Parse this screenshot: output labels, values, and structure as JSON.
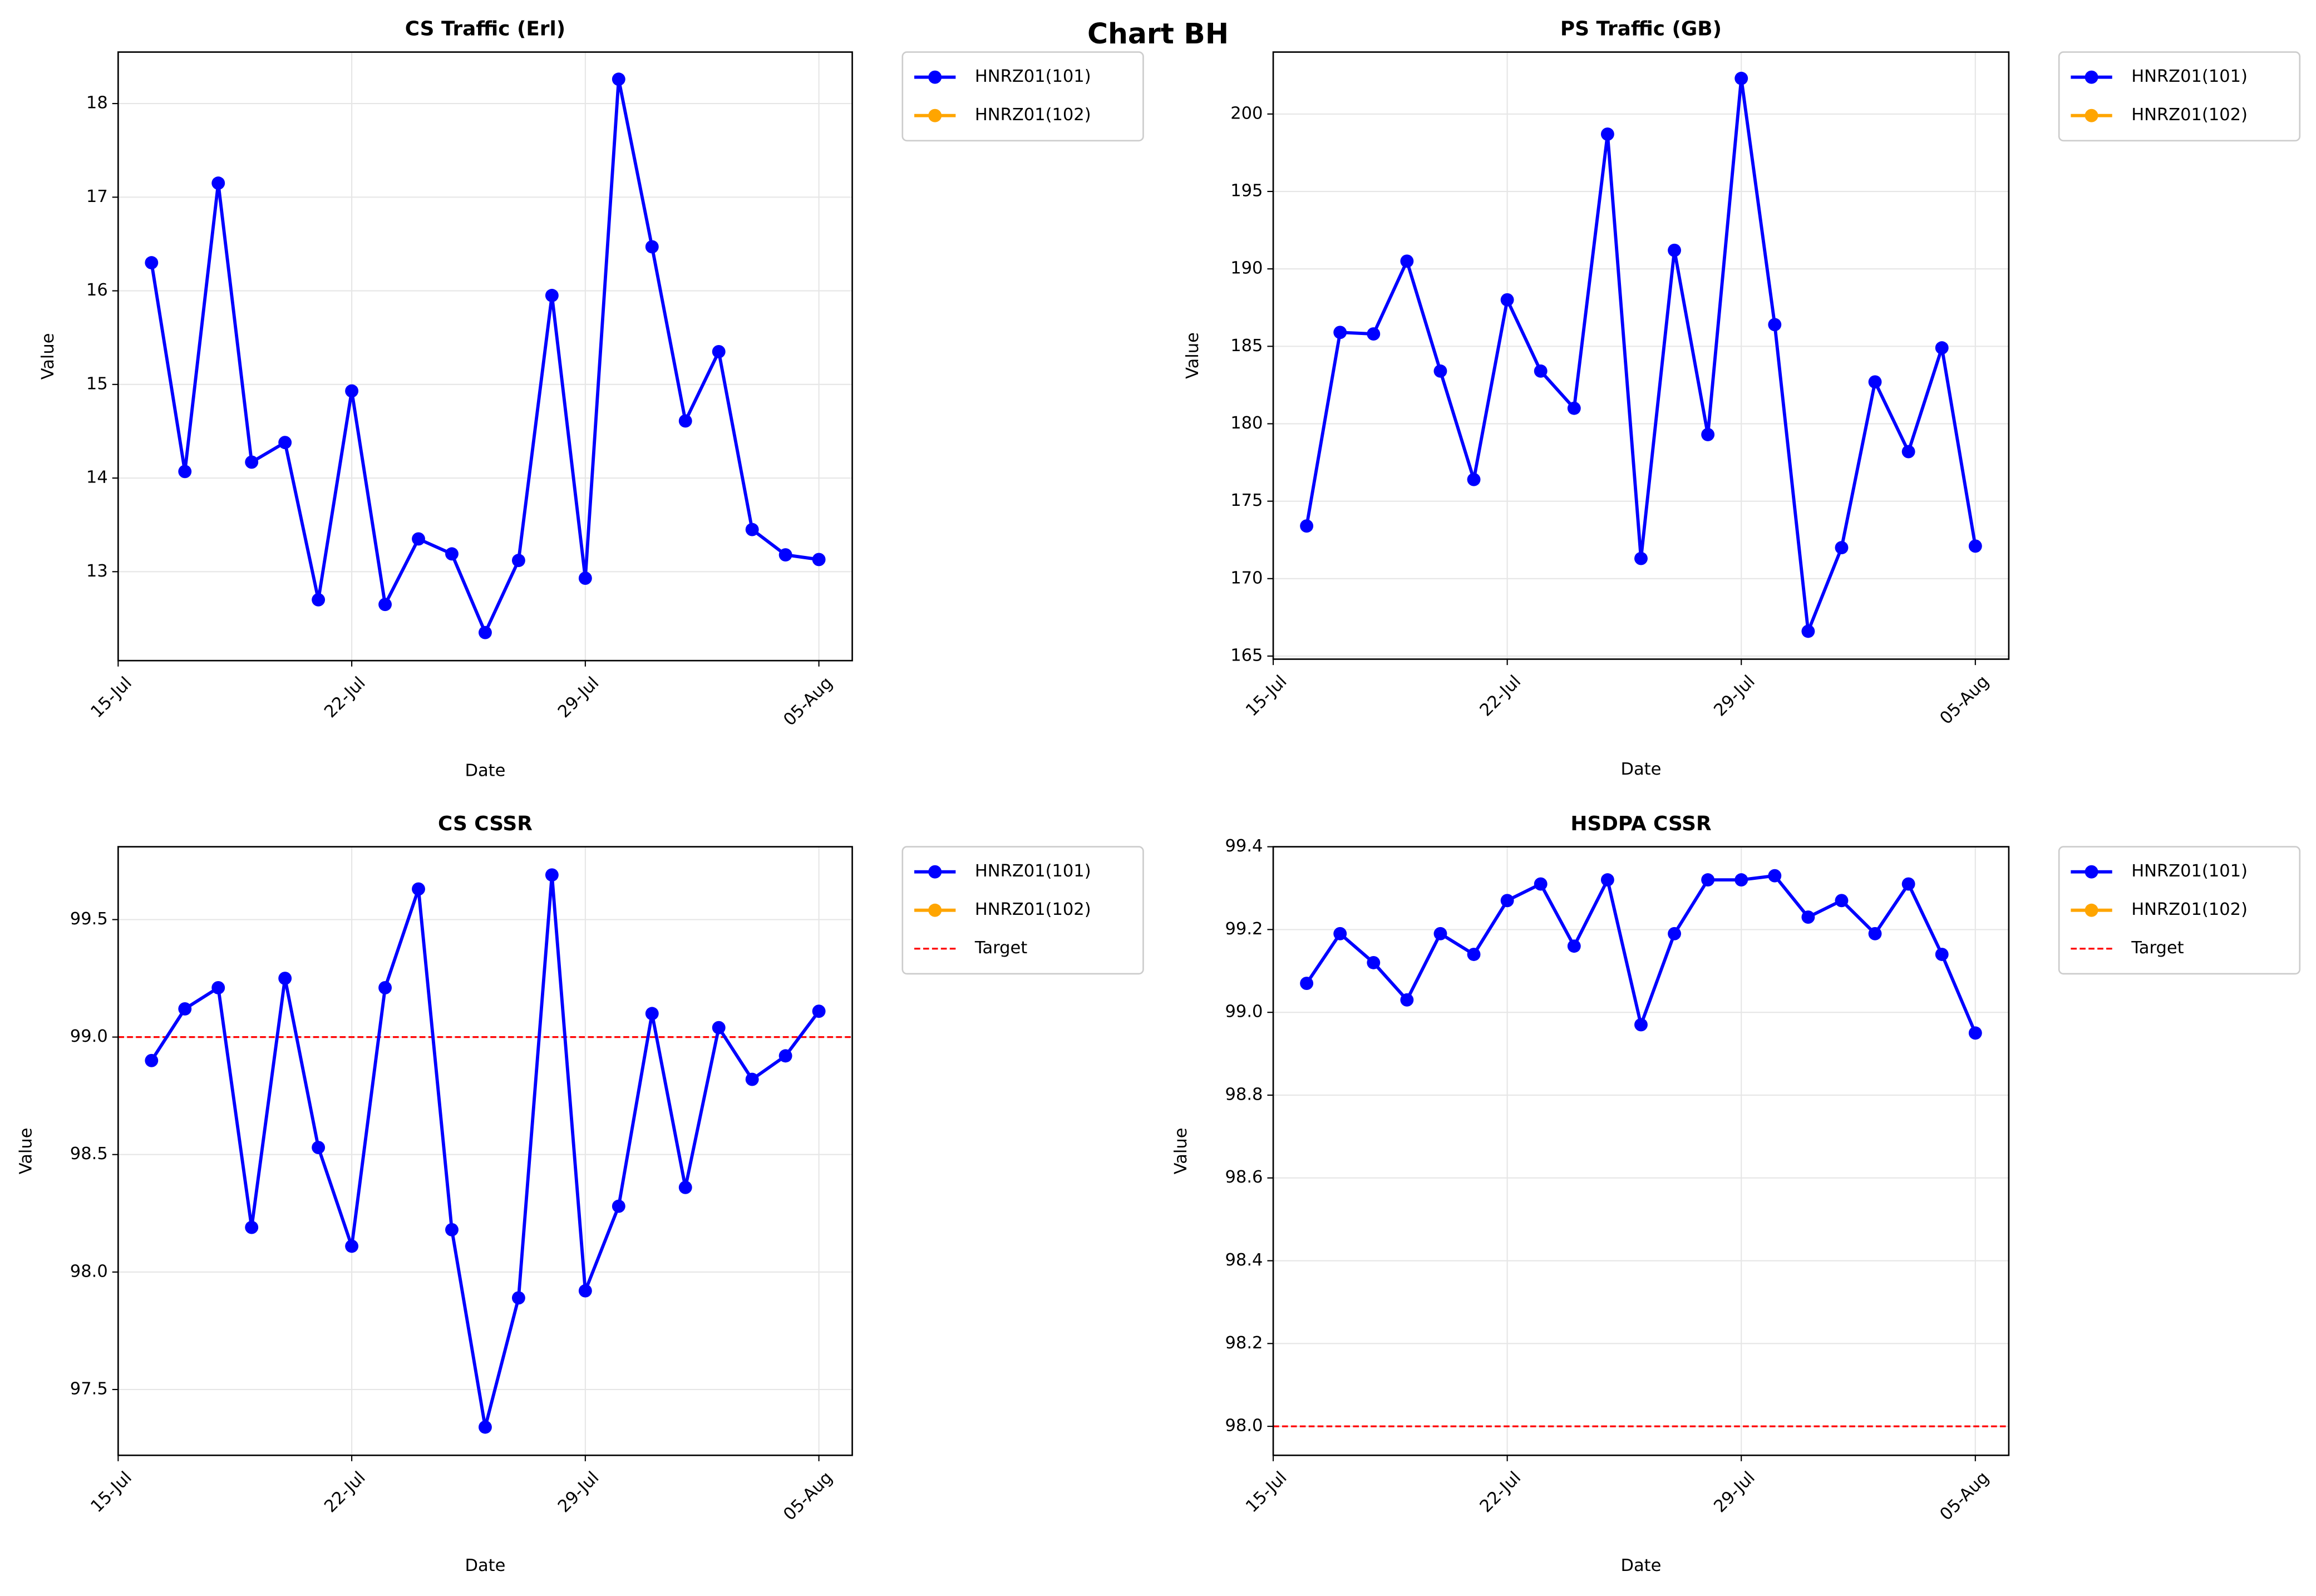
{
  "title": "Chart BH",
  "chart_data": [
    {
      "type": "line",
      "title": "CS Traffic (Erl)",
      "xlabel": "Date",
      "ylabel": "Value",
      "x": [
        "16-Jul",
        "17-Jul",
        "18-Jul",
        "19-Jul",
        "20-Jul",
        "21-Jul",
        "22-Jul",
        "23-Jul",
        "24-Jul",
        "25-Jul",
        "26-Jul",
        "27-Jul",
        "28-Jul",
        "29-Jul",
        "30-Jul",
        "31-Jul",
        "01-Aug",
        "02-Aug",
        "03-Aug",
        "04-Aug",
        "05-Aug"
      ],
      "series": [
        {
          "name": "HNRZ01(101)",
          "color": "#0000ff",
          "values": [
            16.3,
            14.07,
            17.15,
            14.17,
            14.38,
            12.7,
            14.93,
            12.65,
            13.35,
            13.19,
            12.35,
            13.12,
            15.95,
            12.93,
            18.26,
            16.47,
            14.61,
            15.35,
            13.45,
            13.18,
            13.13
          ]
        },
        {
          "name": "HNRZ01(102)",
          "color": "#ffa500",
          "values": [
            null,
            null,
            null,
            null,
            null,
            null,
            null,
            null,
            null,
            null,
            null,
            null,
            null,
            null,
            null,
            null,
            null,
            null,
            null,
            null,
            null
          ]
        }
      ],
      "xlim": [
        "15-Jul",
        "06-Aug"
      ],
      "xticks": [
        "15-Jul",
        "22-Jul",
        "29-Jul",
        "05-Aug"
      ],
      "ylim": [
        12.05,
        18.55
      ],
      "yticks": [
        13,
        14,
        15,
        16,
        17,
        18
      ],
      "grid": true,
      "legend": "outside upper right"
    },
    {
      "type": "line",
      "title": "PS Traffic (GB)",
      "xlabel": "Date",
      "ylabel": "Value",
      "x": [
        "16-Jul",
        "17-Jul",
        "18-Jul",
        "19-Jul",
        "20-Jul",
        "21-Jul",
        "22-Jul",
        "23-Jul",
        "24-Jul",
        "25-Jul",
        "26-Jul",
        "27-Jul",
        "28-Jul",
        "29-Jul",
        "30-Jul",
        "31-Jul",
        "01-Aug",
        "02-Aug",
        "03-Aug",
        "04-Aug",
        "05-Aug"
      ],
      "series": [
        {
          "name": "HNRZ01(101)",
          "color": "#0000ff",
          "values": [
            173.4,
            185.9,
            185.8,
            190.5,
            183.4,
            176.4,
            188.0,
            183.4,
            181.0,
            198.7,
            171.3,
            191.2,
            179.3,
            202.3,
            186.4,
            166.6,
            172.0,
            182.7,
            178.2,
            184.9,
            172.1
          ]
        },
        {
          "name": "HNRZ01(102)",
          "color": "#ffa500",
          "values": [
            null,
            null,
            null,
            null,
            null,
            null,
            null,
            null,
            null,
            null,
            null,
            null,
            null,
            null,
            null,
            null,
            null,
            null,
            null,
            null,
            null
          ]
        }
      ],
      "xlim": [
        "15-Jul",
        "06-Aug"
      ],
      "xticks": [
        "15-Jul",
        "22-Jul",
        "29-Jul",
        "05-Aug"
      ],
      "ylim": [
        164.8,
        204.0
      ],
      "yticks": [
        165,
        170,
        175,
        180,
        185,
        190,
        195,
        200
      ],
      "grid": true,
      "legend": "outside upper right"
    },
    {
      "type": "line",
      "title": "CS CSSR",
      "xlabel": "Date",
      "ylabel": "Value",
      "x": [
        "16-Jul",
        "17-Jul",
        "18-Jul",
        "19-Jul",
        "20-Jul",
        "21-Jul",
        "22-Jul",
        "23-Jul",
        "24-Jul",
        "25-Jul",
        "26-Jul",
        "27-Jul",
        "28-Jul",
        "29-Jul",
        "30-Jul",
        "31-Jul",
        "01-Aug",
        "02-Aug",
        "03-Aug",
        "04-Aug",
        "05-Aug"
      ],
      "series": [
        {
          "name": "HNRZ01(101)",
          "color": "#0000ff",
          "values": [
            98.9,
            99.12,
            99.21,
            98.19,
            99.25,
            98.53,
            98.11,
            99.21,
            99.63,
            98.18,
            97.34,
            97.89,
            99.69,
            97.92,
            98.28,
            99.1,
            98.36,
            99.04,
            98.82,
            98.92,
            99.11
          ]
        },
        {
          "name": "HNRZ01(102)",
          "color": "#ffa500",
          "values": [
            null,
            null,
            null,
            null,
            null,
            null,
            null,
            null,
            null,
            null,
            null,
            null,
            null,
            null,
            null,
            null,
            null,
            null,
            null,
            null,
            null
          ]
        }
      ],
      "target": {
        "name": "Target",
        "color": "#ff0000",
        "value": 99
      },
      "xlim": [
        "15-Jul",
        "06-Aug"
      ],
      "xticks": [
        "15-Jul",
        "22-Jul",
        "29-Jul",
        "05-Aug"
      ],
      "ylim": [
        97.22,
        99.81
      ],
      "yticks": [
        97.5,
        {
          "value": 98,
          "label": "98.0"
        },
        98.5,
        {
          "value": 99,
          "label": "99.0"
        },
        99.5
      ],
      "grid": true,
      "legend": "outside upper right"
    },
    {
      "type": "line",
      "title": "HSDPA CSSR",
      "xlabel": "Date",
      "ylabel": "Value",
      "x": [
        "16-Jul",
        "17-Jul",
        "18-Jul",
        "19-Jul",
        "20-Jul",
        "21-Jul",
        "22-Jul",
        "23-Jul",
        "24-Jul",
        "25-Jul",
        "26-Jul",
        "27-Jul",
        "28-Jul",
        "29-Jul",
        "30-Jul",
        "31-Jul",
        "01-Aug",
        "02-Aug",
        "03-Aug",
        "04-Aug",
        "05-Aug"
      ],
      "series": [
        {
          "name": "HNRZ01(101)",
          "color": "#0000ff",
          "values": [
            99.07,
            99.19,
            99.12,
            99.03,
            99.19,
            99.14,
            99.27,
            99.31,
            99.16,
            99.32,
            98.97,
            99.19,
            99.32,
            99.32,
            99.33,
            99.23,
            99.27,
            99.19,
            99.31,
            99.14,
            98.95
          ]
        },
        {
          "name": "HNRZ01(102)",
          "color": "#ffa500",
          "values": [
            null,
            null,
            null,
            null,
            null,
            null,
            null,
            null,
            null,
            null,
            null,
            null,
            null,
            null,
            null,
            null,
            null,
            null,
            null,
            null,
            null
          ]
        }
      ],
      "target": {
        "name": "Target",
        "color": "#ff0000",
        "value": 98
      },
      "xlim": [
        "15-Jul",
        "06-Aug"
      ],
      "xticks": [
        "15-Jul",
        "22-Jul",
        "29-Jul",
        "05-Aug"
      ],
      "ylim": [
        97.93,
        99.4
      ],
      "yticks": [
        {
          "value": 98,
          "label": "98.0"
        },
        98.2,
        98.4,
        98.6,
        98.8,
        {
          "value": 99,
          "label": "99.0"
        },
        99.2,
        99.4
      ],
      "grid": true,
      "legend": "outside upper right"
    }
  ]
}
